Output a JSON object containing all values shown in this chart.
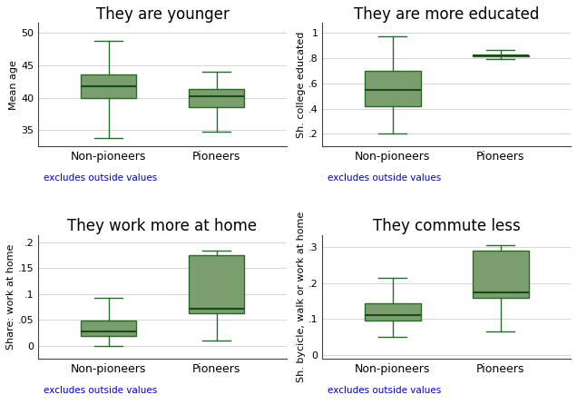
{
  "panels": [
    {
      "title": "They are younger",
      "ylabel": "Mean age",
      "ylim": [
        32.5,
        51.5
      ],
      "yticks": [
        35,
        40,
        45,
        50
      ],
      "ytick_labels": [
        "35",
        "40",
        "45",
        "50"
      ],
      "boxes": [
        {
          "label": "Non-pioneers",
          "whislo": 33.8,
          "q1": 40.0,
          "med": 41.8,
          "q3": 43.5,
          "whishi": 48.7
        },
        {
          "label": "Pioneers",
          "whislo": 34.8,
          "q1": 38.5,
          "med": 40.2,
          "q3": 41.3,
          "whishi": 44.0
        }
      ]
    },
    {
      "title": "They are more educated",
      "ylabel": "Sh. college educated",
      "ylim": [
        0.1,
        1.08
      ],
      "yticks": [
        0.2,
        0.4,
        0.6,
        0.8,
        1.0
      ],
      "ytick_labels": [
        ".2",
        ".4",
        ".6",
        ".8",
        "1"
      ],
      "boxes": [
        {
          "label": "Non-pioneers",
          "whislo": 0.2,
          "q1": 0.42,
          "med": 0.55,
          "q3": 0.7,
          "whishi": 0.97
        },
        {
          "label": "Pioneers",
          "whislo": 0.79,
          "q1": 0.815,
          "med": 0.82,
          "q3": 0.825,
          "whishi": 0.865
        }
      ]
    },
    {
      "title": "They work more at home",
      "ylabel": "Share: work at home",
      "ylim": [
        -0.025,
        0.215
      ],
      "yticks": [
        0.0,
        0.05,
        0.1,
        0.15,
        0.2
      ],
      "ytick_labels": [
        "0",
        ".05",
        ".1",
        ".15",
        ".2"
      ],
      "boxes": [
        {
          "label": "Non-pioneers",
          "whislo": 0.0,
          "q1": 0.018,
          "med": 0.028,
          "q3": 0.048,
          "whishi": 0.092
        },
        {
          "label": "Pioneers",
          "whislo": 0.01,
          "q1": 0.062,
          "med": 0.072,
          "q3": 0.175,
          "whishi": 0.185
        }
      ]
    },
    {
      "title": "They commute less",
      "ylabel": "Sh. bycicle, walk or work at home",
      "ylim": [
        -0.01,
        0.335
      ],
      "yticks": [
        0.0,
        0.1,
        0.2,
        0.3
      ],
      "ytick_labels": [
        "0",
        ".1",
        ".2",
        ".3"
      ],
      "boxes": [
        {
          "label": "Non-pioneers",
          "whislo": 0.05,
          "q1": 0.095,
          "med": 0.11,
          "q3": 0.145,
          "whishi": 0.215
        },
        {
          "label": "Pioneers",
          "whislo": 0.065,
          "q1": 0.16,
          "med": 0.175,
          "q3": 0.29,
          "whishi": 0.305
        }
      ]
    }
  ],
  "box_facecolor": "#7a9e6e",
  "box_edgecolor": "#2a6a2a",
  "median_color": "#1a4a1a",
  "whisker_color": "#2a6a2a",
  "cap_color": "#2a6a2a",
  "footnote": "excludes outside values",
  "footnote_color": "#0000cc",
  "title_fontsize": 12,
  "ylabel_fontsize": 8,
  "tick_fontsize": 8,
  "xtick_fontsize": 9,
  "footnote_fontsize": 7.5
}
